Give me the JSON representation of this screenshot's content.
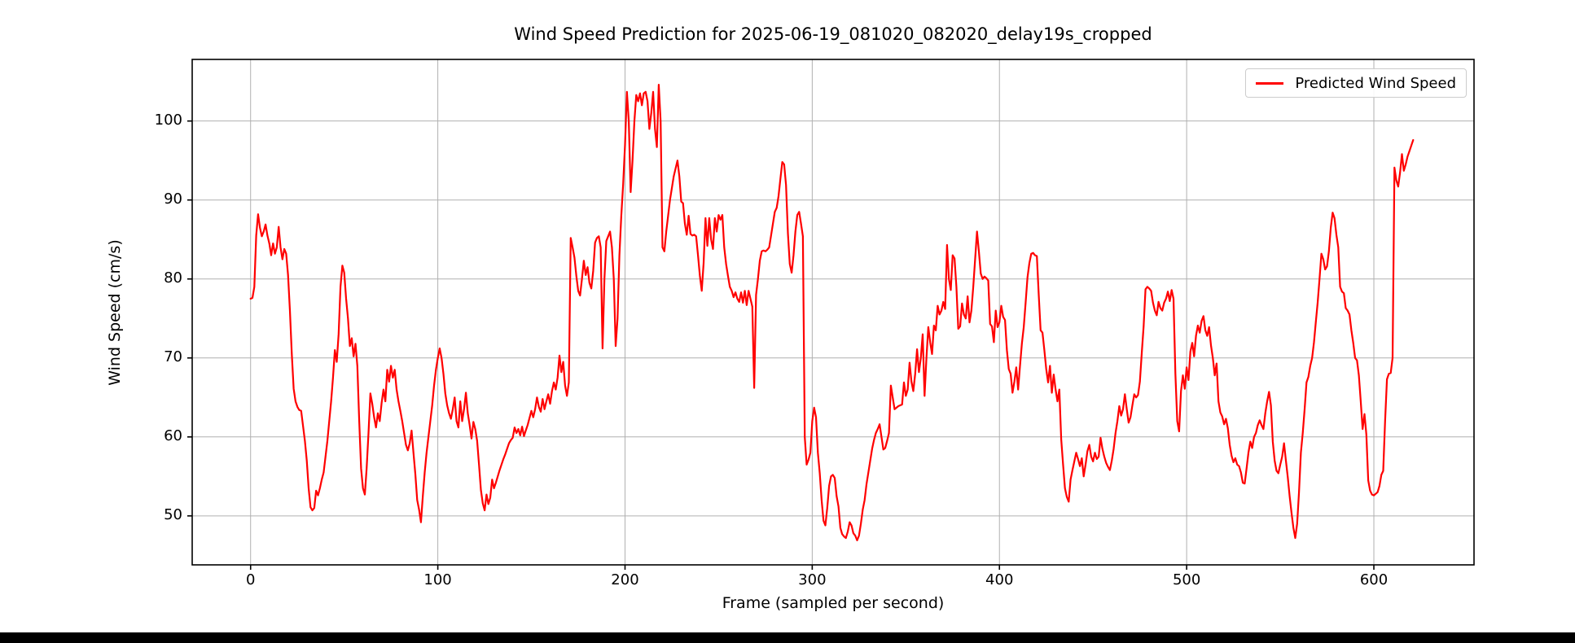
{
  "page": {
    "background": "#ffffff",
    "bottom_bar_color": "#000000"
  },
  "chart_data": {
    "type": "line",
    "title": "Wind Speed Prediction for 2025-06-19_081020_082020_delay19s_cropped",
    "xlabel": "Frame (sampled per second)",
    "ylabel": "Wind Speed (cm/s)",
    "grid": true,
    "grid_color": "#b0b0b0",
    "spine_color": "#000000",
    "legend": {
      "position": "upper right",
      "entries": [
        {
          "label": "Predicted Wind Speed",
          "color": "#ff0000"
        }
      ]
    },
    "xlim": [
      -31.2,
      653.5
    ],
    "ylim": [
      43.8,
      107.8
    ],
    "xticks": [
      0,
      100,
      200,
      300,
      400,
      500,
      600
    ],
    "yticks": [
      50,
      60,
      70,
      80,
      90,
      100
    ],
    "series": [
      {
        "name": "Predicted Wind Speed",
        "color": "#ff0000",
        "x_start": 0,
        "x_step": 1,
        "values": [
          77.5,
          77.6,
          79,
          85.5,
          88.2,
          86.5,
          85.4,
          86,
          86.9,
          85.5,
          84.5,
          83,
          84.5,
          83.2,
          84,
          86.6,
          84,
          82.5,
          83.8,
          83.2,
          80.5,
          76,
          70.5,
          66.1,
          64.5,
          63.8,
          63.4,
          63.3,
          61.4,
          59.5,
          57,
          53.5,
          51.1,
          50.7,
          51,
          53.2,
          52.6,
          53.5,
          54.6,
          55.5,
          57.5,
          59.5,
          62,
          64.5,
          67.5,
          71,
          69.5,
          73,
          79,
          81.7,
          80.8,
          77.5,
          75,
          71.5,
          72.5,
          70.2,
          71.8,
          69,
          62,
          56,
          53.5,
          52.7,
          56,
          60.5,
          65.5,
          64.2,
          62.5,
          61.2,
          63,
          62,
          64.3,
          66,
          64.5,
          68.5,
          67,
          69,
          67.5,
          68.5,
          66,
          64.5,
          63.3,
          62,
          60.5,
          59,
          58.3,
          59.2,
          60.8,
          58,
          55.3,
          52,
          50.8,
          49.2,
          52.5,
          55.5,
          58,
          60,
          62,
          64,
          66.5,
          68.5,
          70,
          71.2,
          70,
          68,
          65.5,
          64,
          63,
          62.3,
          63.5,
          65,
          62,
          61.2,
          64.5,
          62,
          63.5,
          65.6,
          63,
          61.5,
          59.8,
          61.9,
          61,
          59.5,
          56.5,
          53.3,
          51.6,
          50.7,
          52.7,
          51.5,
          52.3,
          54.6,
          53.5,
          54.2,
          55,
          55.8,
          56.5,
          57.2,
          57.8,
          58.5,
          59.2,
          59.6,
          59.9,
          61.2,
          60.5,
          61,
          60.2,
          61.3,
          60.1,
          60.8,
          61.5,
          62.4,
          63.3,
          62.5,
          63.5,
          65,
          63.8,
          63.2,
          64.8,
          63.5,
          64.5,
          65.4,
          64.2,
          65.8,
          66.9,
          66,
          67.5,
          70.3,
          68.2,
          69.5,
          66.5,
          65.2,
          66.9,
          85.2,
          84,
          82.7,
          80.4,
          78.5,
          77.9,
          80,
          82.3,
          80.5,
          81.5,
          79.5,
          78.8,
          81,
          84.6,
          85.2,
          85.4,
          84,
          71.2,
          80,
          84.8,
          85.4,
          86,
          84,
          80,
          71.5,
          75,
          83,
          88,
          92,
          97,
          103.7,
          100,
          91,
          95,
          100,
          103.3,
          102.5,
          103.5,
          102,
          103.5,
          103.7,
          102.5,
          99,
          101,
          103.7,
          99,
          96.7,
          104.6,
          100,
          84,
          83.5,
          86,
          88,
          90,
          91.5,
          93,
          94,
          95,
          93,
          89.8,
          89.6,
          87,
          85.6,
          88,
          85.7,
          85.5,
          85.6,
          85.4,
          83,
          80.4,
          78.5,
          82,
          87.7,
          84.2,
          87.7,
          85,
          83.8,
          87.7,
          86,
          88.1,
          87.5,
          88.1,
          84,
          81.9,
          80.4,
          79,
          78.5,
          77.7,
          78.3,
          77.5,
          77.1,
          78.3,
          77,
          78.5,
          76.7,
          78.5,
          77.5,
          76.5,
          66.2,
          78,
          80,
          82.3,
          83.5,
          83.6,
          83.5,
          83.7,
          84,
          85.5,
          87,
          88.5,
          89,
          90.5,
          92.7,
          94.8,
          94.5,
          91.9,
          85.8,
          81.9,
          80.8,
          83,
          86,
          88.1,
          88.5,
          87,
          85.4,
          60,
          56.5,
          57.1,
          58,
          62,
          63.7,
          62.5,
          58,
          55.4,
          52,
          49.4,
          48.8,
          51,
          53.8,
          55,
          55.2,
          54.8,
          52.5,
          51.2,
          48.5,
          47.7,
          47.4,
          47.2,
          48,
          49.2,
          48.8,
          47.8,
          47.5,
          46.9,
          47.5,
          49,
          50.8,
          52,
          54,
          55.5,
          57,
          58.5,
          59.6,
          60.5,
          61,
          61.6,
          60,
          58.4,
          58.6,
          59.5,
          60.5,
          66.5,
          65,
          63.5,
          63.7,
          63.9,
          64,
          64.1,
          66.9,
          65.2,
          66,
          69.4,
          67,
          65.8,
          68,
          71.1,
          68.2,
          70,
          73,
          65.2,
          70,
          73.9,
          72,
          70.5,
          74.1,
          73.5,
          76.6,
          75.5,
          76,
          77.1,
          76.2,
          84.3,
          80,
          78.6,
          83,
          82.6,
          79,
          73.7,
          74,
          76.9,
          75.5,
          75,
          77.8,
          74.5,
          76,
          79,
          82.5,
          86,
          83.5,
          80.7,
          80,
          80.3,
          80.1,
          79.8,
          74.3,
          74,
          72,
          76,
          73.9,
          74.5,
          76.6,
          75.2,
          74.8,
          71,
          68.6,
          68,
          65.6,
          67,
          68.8,
          66,
          69,
          71.8,
          73.9,
          77,
          80.2,
          82,
          83.2,
          83.3,
          83,
          82.9,
          78,
          73.5,
          73.2,
          71,
          68.6,
          66.9,
          69,
          65.6,
          67.9,
          66,
          64.5,
          66,
          59.7,
          56.5,
          53.5,
          52.4,
          51.8,
          54.6,
          55.8,
          56.9,
          58,
          57.2,
          56.3,
          57.3,
          55,
          56.5,
          58.2,
          59,
          57.5,
          56.9,
          58,
          57.2,
          57.5,
          59.9,
          58.5,
          57.5,
          56.7,
          56.2,
          55.8,
          57,
          58.5,
          60.5,
          62,
          63.9,
          62.7,
          63.5,
          65.4,
          63.5,
          61.8,
          62.5,
          64,
          65.4,
          65,
          65.3,
          67,
          70.6,
          74,
          78.7,
          79,
          78.8,
          78.5,
          77,
          76,
          75.4,
          77.1,
          76.3,
          76,
          77,
          77.5,
          78.4,
          77.2,
          78.6,
          77.5,
          68,
          62,
          60.7,
          65.8,
          67.8,
          66.1,
          68.8,
          67.2,
          70.8,
          71.9,
          70.2,
          72.8,
          74.1,
          73.2,
          74.7,
          75.3,
          73.5,
          72.8,
          73.9,
          71.6,
          70,
          67.8,
          69.3,
          64.5,
          63.1,
          62.6,
          61.6,
          62.3,
          61.1,
          59,
          57.6,
          56.8,
          57.3,
          56.5,
          56.3,
          55.5,
          54.2,
          54.1,
          56,
          58,
          59.4,
          58.6,
          60,
          60.5,
          61.5,
          62.1,
          61.5,
          61,
          63,
          64.5,
          65.7,
          64,
          59.4,
          57,
          55.7,
          55.4,
          56.5,
          57.5,
          59.2,
          57,
          54.9,
          52.5,
          50.4,
          48.5,
          47.2,
          49,
          53,
          58,
          60.5,
          63.5,
          66.9,
          67.6,
          69,
          70,
          72,
          74.5,
          77,
          80,
          83.2,
          82.5,
          81.2,
          81.6,
          83.5,
          86.5,
          88.4,
          87.7,
          85.6,
          84,
          79,
          78.4,
          78.2,
          76.3,
          76,
          75.5,
          73.5,
          71.9,
          70,
          69.7,
          67.8,
          64.5,
          61,
          62.9,
          60.3,
          54.5,
          53.2,
          52.7,
          52.6,
          52.8,
          53,
          53.8,
          55.2,
          55.7,
          62,
          67.3,
          68,
          68.1,
          70,
          94.1,
          92.5,
          91.7,
          93.5,
          95.8,
          93.7,
          94.5,
          95.5,
          96.2,
          96.9,
          97.6
        ]
      }
    ]
  }
}
